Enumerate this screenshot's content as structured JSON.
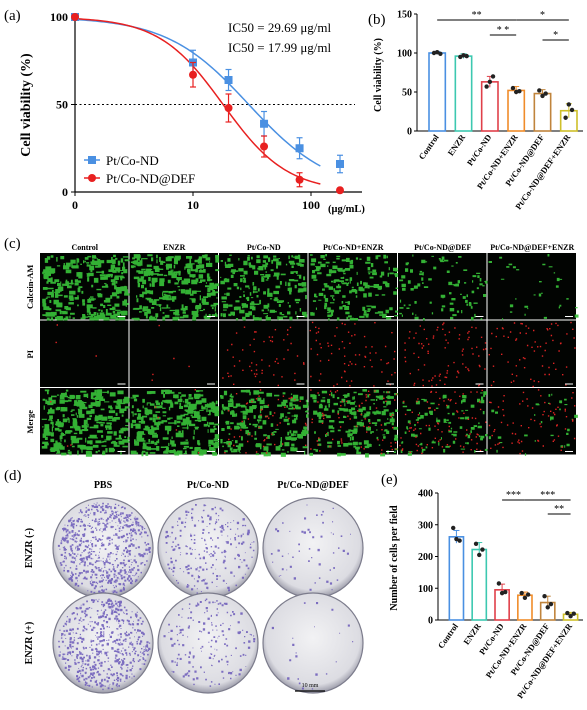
{
  "panels": {
    "a": {
      "letter": "(a)"
    },
    "b": {
      "letter": "(b)"
    },
    "c": {
      "letter": "(c)"
    },
    "d": {
      "letter": "(d)"
    },
    "e": {
      "letter": "(e)"
    }
  },
  "colors": {
    "blue": "#4a90e2",
    "red": "#e82020",
    "green_cells": "#3ec43e",
    "violet": "#6a58b8",
    "bar_colors": [
      "#4a90e2",
      "#3cc8b0",
      "#e0404a",
      "#f08c2a",
      "#c0843c",
      "#cfc02a"
    ]
  },
  "chart_data": [
    {
      "panel": "a",
      "type": "line",
      "xlabel": "(μg/mL)",
      "ylabel": "Cell viability (%)",
      "x_scale": "log",
      "xlim": [
        1,
        120
      ],
      "ylim": [
        0,
        100
      ],
      "xticks": [
        {
          "v": 1,
          "label": "0"
        },
        {
          "v": 10,
          "label": "10"
        },
        {
          "v": 100,
          "label": "100"
        }
      ],
      "yticks": [
        0,
        50,
        100
      ],
      "yticklabels": [
        "0",
        "50",
        "100"
      ],
      "reference_line": {
        "y": 50,
        "style": "dotted"
      },
      "annotations": [
        {
          "text": "IC50 = 29.69 μg/ml",
          "color": "#4a90e2"
        },
        {
          "text": "IC50 = 17.99 μg/ml",
          "color": "#e82020"
        }
      ],
      "legend_position": "bottom-left",
      "series": [
        {
          "name": "Pt/Co-ND",
          "color": "#4a90e2",
          "marker": "square",
          "x": [
            1,
            10,
            20,
            40,
            80,
            160
          ],
          "y": [
            100,
            74,
            64,
            39,
            25,
            16
          ],
          "err": [
            1,
            7,
            6,
            7,
            6,
            5
          ],
          "ic50": 29.69
        },
        {
          "name": "Pt/Co-ND@DEF",
          "color": "#e82020",
          "marker": "circle",
          "x": [
            1,
            10,
            20,
            40,
            80,
            160
          ],
          "y": [
            100,
            67,
            48,
            26,
            7,
            1
          ],
          "err": [
            1,
            7,
            8,
            6,
            4,
            1
          ],
          "ic50": 17.99
        }
      ]
    },
    {
      "panel": "b",
      "type": "bar",
      "ylabel": "Cell viability (%)",
      "ylim": [
        0,
        150
      ],
      "yticks": [
        0,
        50,
        100,
        150
      ],
      "categories": [
        "Control",
        "ENZR",
        "Pt/Co-ND",
        "Pt/Co-ND+ENZR",
        "Pt/Co-ND@DEF",
        "Pt/Co-ND@DEF+ENZR"
      ],
      "values": [
        100,
        96,
        63,
        52,
        48,
        26
      ],
      "errors": [
        2,
        3,
        7,
        5,
        5,
        9
      ],
      "points": [
        [
          100,
          101,
          99
        ],
        [
          95,
          97,
          96
        ],
        [
          57,
          63,
          70
        ],
        [
          55,
          50,
          51
        ],
        [
          52,
          45,
          48
        ],
        [
          17,
          34,
          27
        ]
      ],
      "significance": [
        {
          "from": 0,
          "to": 3,
          "label": "**"
        },
        {
          "from": 2,
          "to": 3,
          "label": "* *"
        },
        {
          "from": 3,
          "to": 5,
          "label": "*"
        },
        {
          "from": 4,
          "to": 5,
          "label": "*"
        }
      ]
    },
    {
      "panel": "e",
      "type": "bar",
      "ylabel": "Number of cells per field",
      "ylim": [
        0,
        400
      ],
      "yticks": [
        0,
        100,
        200,
        300,
        400
      ],
      "categories": [
        "Control",
        "ENZR",
        "Pt/Co-ND",
        "Pt/Co-ND+ENZR",
        "Pt/Co-ND@DEF",
        "Pt/Co-ND@DEF+ENZR"
      ],
      "values": [
        262,
        222,
        95,
        78,
        55,
        18
      ],
      "errors": [
        20,
        22,
        18,
        10,
        20,
        6
      ],
      "points": [
        [
          290,
          255,
          250
        ],
        [
          240,
          205,
          222
        ],
        [
          115,
          85,
          88
        ],
        [
          85,
          70,
          80
        ],
        [
          75,
          40,
          50
        ],
        [
          22,
          12,
          20
        ]
      ],
      "significance": [
        {
          "from": 2,
          "to": 3,
          "label": "***"
        },
        {
          "from": 3,
          "to": 5,
          "label": "***"
        },
        {
          "from": 4,
          "to": 5,
          "label": "**"
        }
      ]
    }
  ],
  "fluorescence": {
    "columns": [
      "Control",
      "ENZR",
      "Pt/Co-ND",
      "Pt/Co-ND+ENZR",
      "Pt/Co-ND@DEF",
      "Pt/Co-ND@DEF+ENZR"
    ],
    "rows": [
      "Calcein-AM",
      "PI",
      "Merge"
    ],
    "green_level": [
      1.0,
      1.0,
      0.75,
      0.65,
      0.35,
      0.12
    ],
    "red_level": [
      0.02,
      0.03,
      0.35,
      0.45,
      0.55,
      0.45
    ]
  },
  "colony": {
    "columns": [
      "PBS",
      "Pt/Co-ND",
      "Pt/Co-ND@DEF"
    ],
    "rows": [
      "ENZR (-)",
      "ENZR (+)"
    ],
    "density": [
      [
        1.0,
        0.35,
        0.08
      ],
      [
        0.85,
        0.25,
        0.03
      ]
    ],
    "scale_bar": "10 mm"
  }
}
